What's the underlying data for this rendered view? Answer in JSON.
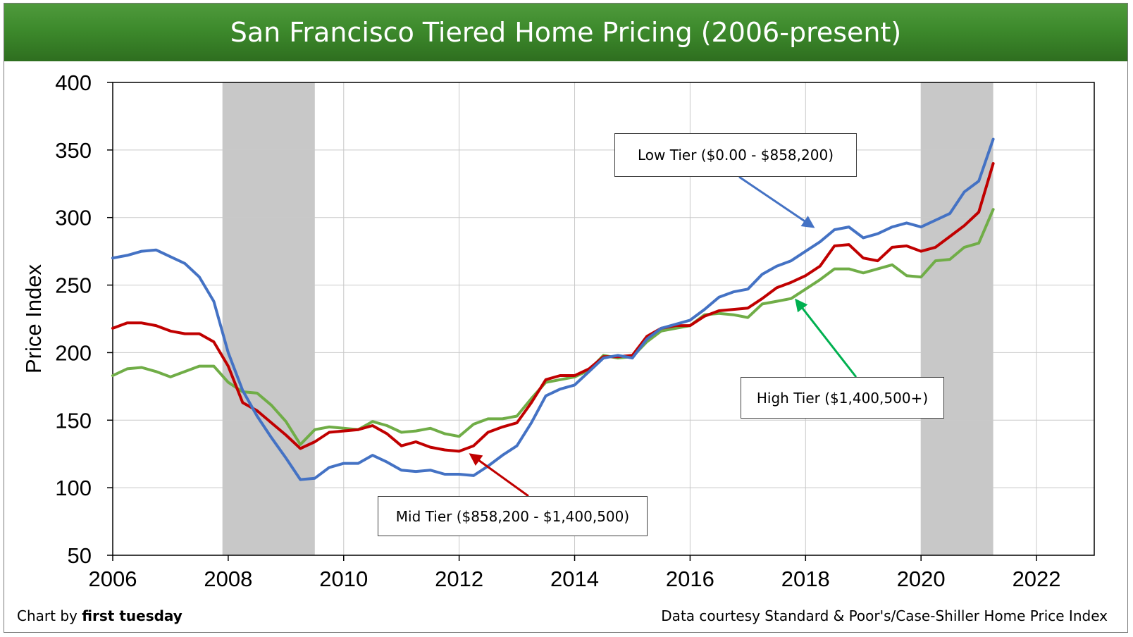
{
  "title": "San Francisco Tiered Home Pricing (2006-present)",
  "footer": {
    "credit_prefix": "Chart by",
    "credit_brand": "first tuesday",
    "source": "Data courtesy Standard & Poor's/Case-Shiller Home Price Index"
  },
  "annotations": {
    "low": "Low Tier ($0.00 - $858,200)",
    "mid": "Mid Tier ($858,200 - $1,400,500)",
    "high": "High Tier ($1,400,500+)"
  },
  "colors": {
    "low": "#4472C4",
    "mid": "#C00000",
    "high": "#70AD47",
    "recession": "#C8C8C8",
    "title_bar": "#3d8a2c",
    "arrow_high": "#00B050"
  },
  "chart_data": {
    "type": "line",
    "title": "San Francisco Tiered Home Pricing (2006-present)",
    "xlabel": "",
    "ylabel": "Price Index",
    "xlim": [
      2006,
      2023
    ],
    "ylim": [
      50,
      400
    ],
    "x_ticks": [
      2006,
      2008,
      2010,
      2012,
      2014,
      2016,
      2018,
      2020,
      2022
    ],
    "y_ticks": [
      50,
      100,
      150,
      200,
      250,
      300,
      350,
      400
    ],
    "grid": true,
    "recession_bands": [
      [
        2007.9,
        2009.5
      ],
      [
        2020.0,
        2021.25
      ]
    ],
    "series": [
      {
        "name": "Low Tier ($0.00 - $858,200)",
        "x": [
          2006.0,
          2006.25,
          2006.5,
          2006.75,
          2007.0,
          2007.25,
          2007.5,
          2007.75,
          2008.0,
          2008.25,
          2008.5,
          2008.75,
          2009.0,
          2009.25,
          2009.5,
          2009.75,
          2010.0,
          2010.25,
          2010.5,
          2010.75,
          2011.0,
          2011.25,
          2011.5,
          2011.75,
          2012.0,
          2012.25,
          2012.5,
          2012.75,
          2013.0,
          2013.25,
          2013.5,
          2013.75,
          2014.0,
          2014.25,
          2014.5,
          2014.75,
          2015.0,
          2015.25,
          2015.5,
          2015.75,
          2016.0,
          2016.25,
          2016.5,
          2016.75,
          2017.0,
          2017.25,
          2017.5,
          2017.75,
          2018.0,
          2018.25,
          2018.5,
          2018.75,
          2019.0,
          2019.25,
          2019.5,
          2019.75,
          2020.0,
          2020.25,
          2020.5,
          2020.75,
          2021.0,
          2021.25
        ],
        "values": [
          270,
          272,
          275,
          276,
          271,
          266,
          256,
          238,
          200,
          172,
          153,
          137,
          122,
          106,
          107,
          115,
          118,
          118,
          124,
          119,
          113,
          112,
          113,
          110,
          110,
          109,
          116,
          124,
          131,
          148,
          168,
          173,
          176,
          186,
          196,
          198,
          196,
          210,
          218,
          221,
          224,
          232,
          241,
          245,
          247,
          258,
          264,
          268,
          275,
          282,
          291,
          293,
          285,
          288,
          293,
          296,
          293,
          298,
          303,
          319,
          327,
          358
        ]
      },
      {
        "name": "Mid Tier ($858,200 - $1,400,500)",
        "x": [
          2006.0,
          2006.25,
          2006.5,
          2006.75,
          2007.0,
          2007.25,
          2007.5,
          2007.75,
          2008.0,
          2008.25,
          2008.5,
          2008.75,
          2009.0,
          2009.25,
          2009.5,
          2009.75,
          2010.0,
          2010.25,
          2010.5,
          2010.75,
          2011.0,
          2011.25,
          2011.5,
          2011.75,
          2012.0,
          2012.25,
          2012.5,
          2012.75,
          2013.0,
          2013.25,
          2013.5,
          2013.75,
          2014.0,
          2014.25,
          2014.5,
          2014.75,
          2015.0,
          2015.25,
          2015.5,
          2015.75,
          2016.0,
          2016.25,
          2016.5,
          2016.75,
          2017.0,
          2017.25,
          2017.5,
          2017.75,
          2018.0,
          2018.25,
          2018.5,
          2018.75,
          2019.0,
          2019.25,
          2019.5,
          2019.75,
          2020.0,
          2020.25,
          2020.5,
          2020.75,
          2021.0,
          2021.25
        ],
        "values": [
          218,
          222,
          222,
          220,
          216,
          214,
          214,
          208,
          190,
          163,
          157,
          148,
          139,
          129,
          134,
          141,
          142,
          143,
          146,
          140,
          131,
          134,
          130,
          128,
          127,
          131,
          141,
          145,
          148,
          163,
          180,
          183,
          183,
          188,
          197,
          197,
          198,
          212,
          218,
          220,
          220,
          227,
          231,
          232,
          233,
          240,
          248,
          252,
          257,
          264,
          279,
          280,
          270,
          268,
          278,
          279,
          275,
          278,
          286,
          294,
          304,
          340
        ]
      },
      {
        "name": "High Tier ($1,400,500+)",
        "x": [
          2006.0,
          2006.25,
          2006.5,
          2006.75,
          2007.0,
          2007.25,
          2007.5,
          2007.75,
          2008.0,
          2008.25,
          2008.5,
          2008.75,
          2009.0,
          2009.25,
          2009.5,
          2009.75,
          2010.0,
          2010.25,
          2010.5,
          2010.75,
          2011.0,
          2011.25,
          2011.5,
          2011.75,
          2012.0,
          2012.25,
          2012.5,
          2012.75,
          2013.0,
          2013.25,
          2013.5,
          2013.75,
          2014.0,
          2014.25,
          2014.5,
          2014.75,
          2015.0,
          2015.25,
          2015.5,
          2015.75,
          2016.0,
          2016.25,
          2016.5,
          2016.75,
          2017.0,
          2017.25,
          2017.5,
          2017.75,
          2018.0,
          2018.25,
          2018.5,
          2018.75,
          2019.0,
          2019.25,
          2019.5,
          2019.75,
          2020.0,
          2020.25,
          2020.5,
          2020.75,
          2021.0,
          2021.25
        ],
        "values": [
          183,
          188,
          189,
          186,
          182,
          186,
          190,
          190,
          178,
          171,
          170,
          161,
          149,
          132,
          143,
          145,
          144,
          143,
          149,
          146,
          141,
          142,
          144,
          140,
          138,
          147,
          151,
          151,
          153,
          166,
          178,
          180,
          182,
          187,
          198,
          196,
          197,
          208,
          216,
          218,
          220,
          228,
          229,
          228,
          226,
          236,
          238,
          240,
          247,
          254,
          262,
          262,
          259,
          262,
          265,
          257,
          256,
          268,
          269,
          278,
          281,
          306
        ]
      }
    ]
  }
}
